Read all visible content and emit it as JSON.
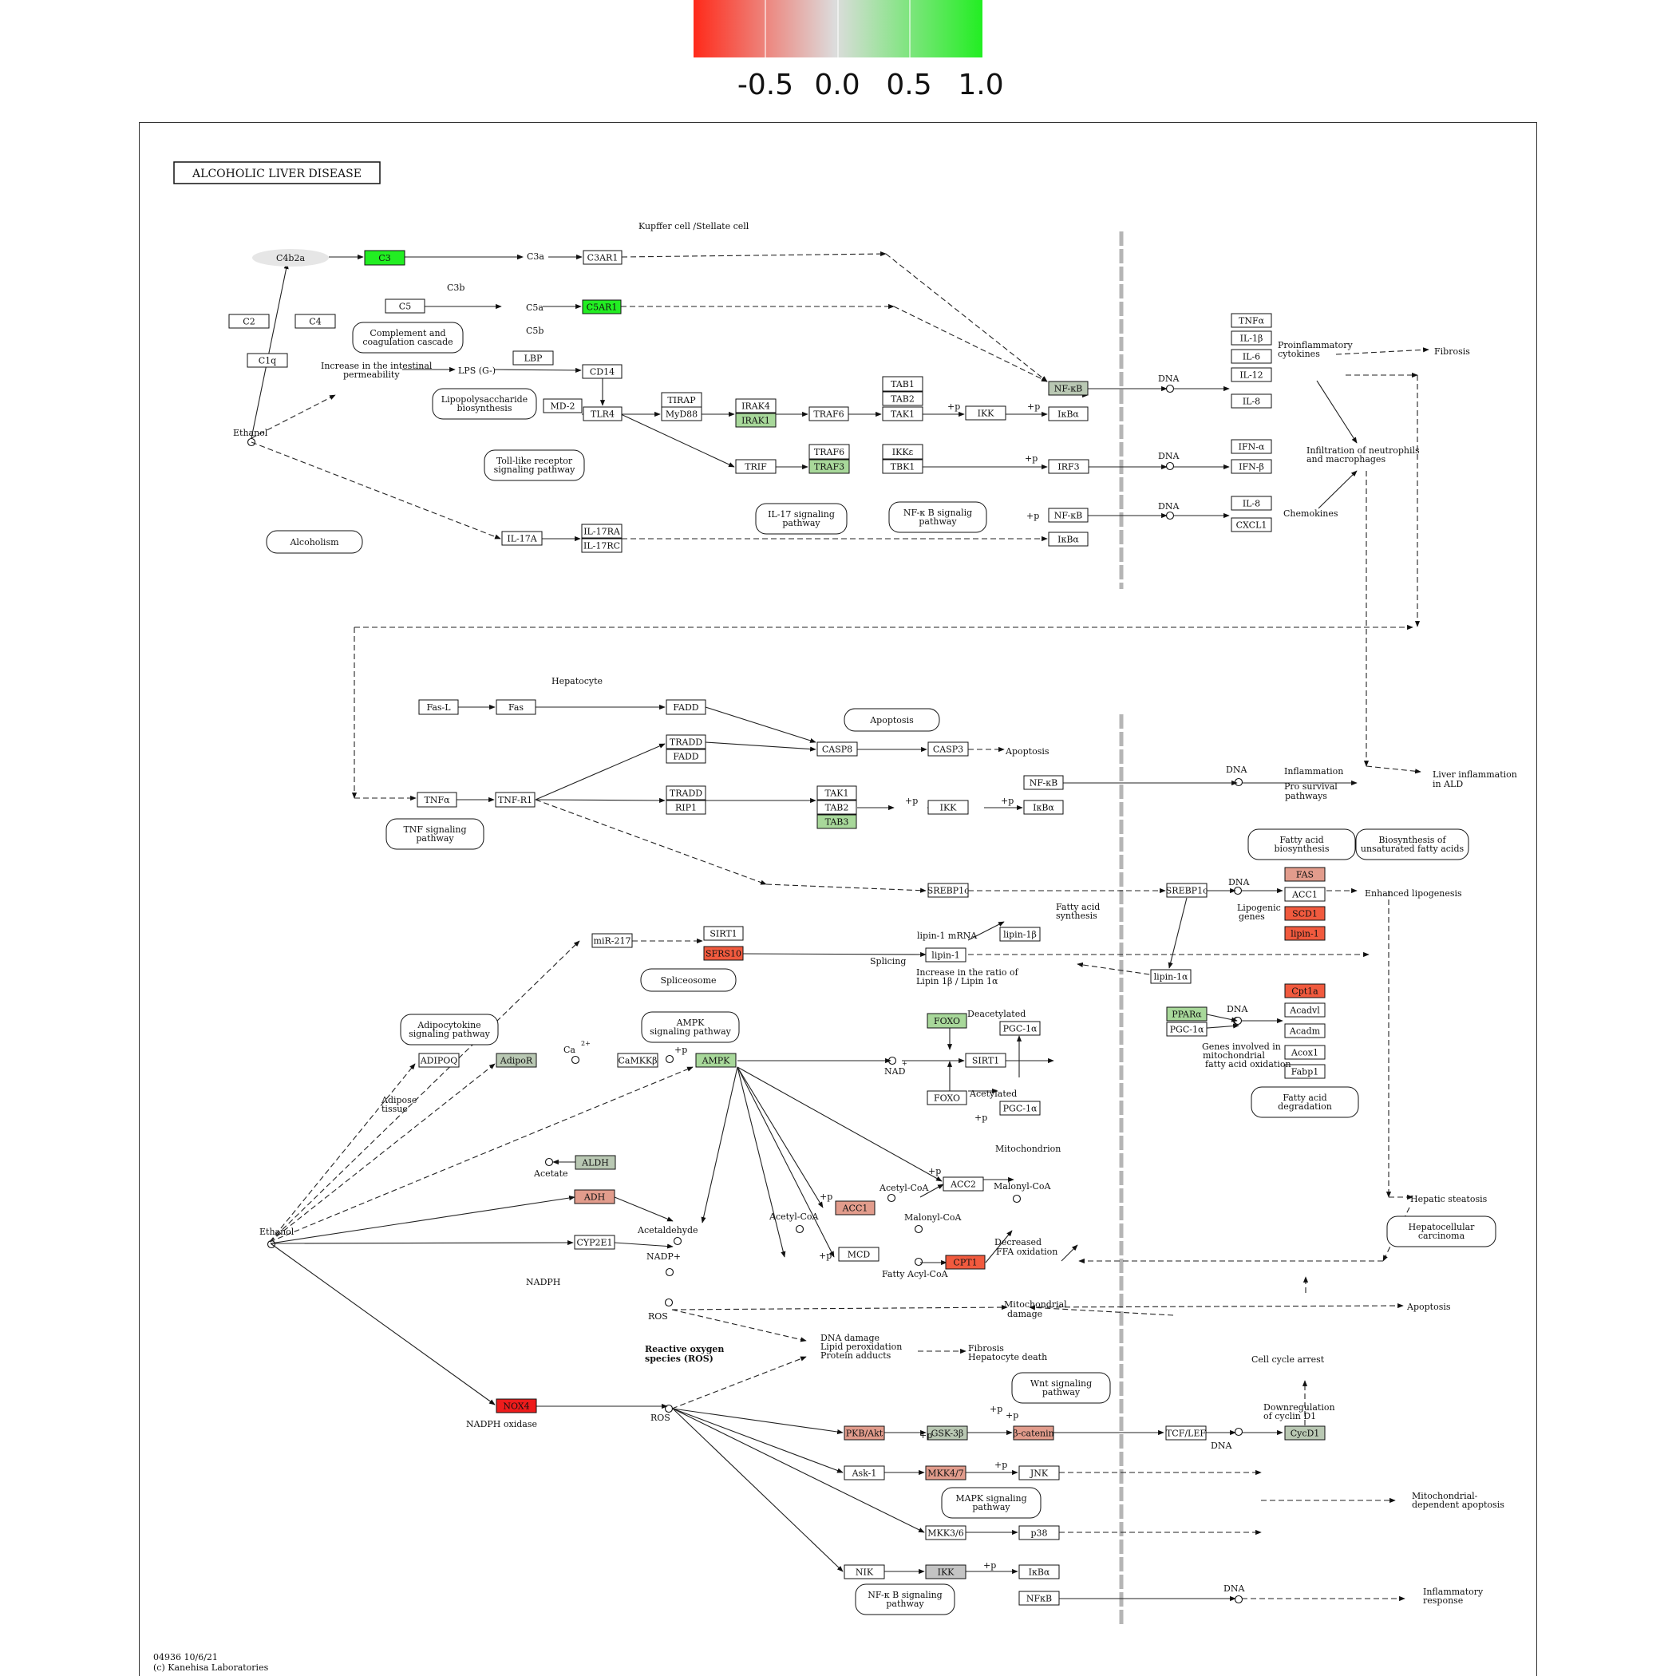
{
  "legend": {
    "ticks": [
      "-0.5",
      "0.0",
      "0.5",
      "1.0"
    ],
    "gradient_colors": [
      "#ff2a1a",
      "#dcdcdc",
      "#22ee22"
    ]
  },
  "title": "ALCOHOLIC LIVER DISEASE",
  "colors": {
    "strong_green": "#22ee22",
    "light_green": "#a8d89a",
    "grey_green": "#b9c8b3",
    "salmon": "#e29c8c",
    "red_orange": "#f15a3e",
    "red": "#ee1c1c",
    "grey": "#c4c4c4"
  },
  "footer": {
    "line1": "04936 10/6/21",
    "line2": "(c) Kanehisa Laboratories"
  },
  "diagram": {
    "labels": [
      "Kupffer cell /Stellate cell",
      "C3a",
      "C3b",
      "C5a",
      "C5b",
      "Ethanol",
      "Increase in the intestinal",
      "permeability",
      "LPS (G-)",
      "+p",
      "+p",
      "DNA",
      "DNA",
      "DNA",
      "Proinflammatory",
      "cytokines",
      "Fibrosis",
      "Infiltration of neutrophils",
      "and macrophages",
      "Chemokines",
      "+p",
      "+p",
      "Hepatocyte",
      "Apoptosis",
      "+p",
      "+p",
      "DNA",
      "Inflammation",
      "Pro survival",
      "pathways",
      "Liver inflammation",
      "in ALD",
      "DNA",
      "Lipogenic",
      "genes",
      "Enhanced lipogenesis",
      "Fatty acid",
      "synthesis",
      "lipin-1 mRNA",
      "Splicing",
      "Increase in the ratio of",
      "Lipin 1β / Lipin 1α",
      "Deacetylated",
      "Acetylated",
      "+p",
      "Ca",
      "2+",
      "+p",
      "NAD",
      "+",
      "DNA",
      "Genes involved in",
      "mitochondrial",
      "fatty acid oxidation",
      "Adipose",
      "tissue",
      "Mitochondrion",
      "Acetate",
      "Acetaldehyde",
      "NADP+",
      "NADPH",
      "+p",
      "Acetyl-CoA",
      "Malonyl-CoA",
      "+p",
      "Acetyl-CoA",
      "Malonyl-CoA",
      "+p",
      "Fatty Acyl-CoA",
      "Decreased",
      "FFA oxidation",
      "Hepatic steatosis",
      "Ethanol",
      "ROS",
      "Mitochondrial",
      "damage",
      "Apoptosis",
      "Reactive oxygen",
      "species (ROS)",
      "DNA damage",
      "Lipid peroxidation",
      "Protein adducts",
      "Fibrosis",
      "Hepatocyte death",
      "Cell cycle arrest",
      "Downregulation",
      "of cyclin D1",
      "NADPH oxidase",
      "ROS",
      "+p",
      "+p",
      "+p",
      "DNA",
      "+p",
      "Mitochondrial-",
      "dependent apoptosis",
      "+p",
      "DNA",
      "Inflammatory",
      "response"
    ],
    "nodes": [
      "C4b2a",
      "C3",
      "C3AR1",
      "C5",
      "C5AR1",
      "C2",
      "C4",
      "C1q",
      "LBP",
      "CD14",
      "MD-2",
      "TLR4",
      "TIRAP",
      "MyD88",
      "IRAK4",
      "IRAK1",
      "TRAF6",
      "TAB1",
      "TAB2",
      "TAK1",
      "IKK",
      "NF-κB",
      "IκBα",
      "TNFα",
      "IL-1β",
      "IL-6",
      "IL-12",
      "IL-8",
      "TRIF",
      "TRAF6",
      "TRAF3",
      "IKKε",
      "TBK1",
      "IRF3",
      "IFN-α",
      "IFN-β",
      "IL-17A",
      "IL-17RA",
      "IL-17RC",
      "NF-κB",
      "IκBα",
      "IL-8",
      "CXCL1",
      "Fas-L",
      "Fas",
      "FADD",
      "TRADD",
      "FADD",
      "CASP8",
      "CASP3",
      "TNFα",
      "TNF-R1",
      "TRADD",
      "RIP1",
      "TAK1",
      "TAB2",
      "TAB3",
      "IKK",
      "NF-κB",
      "IκBα",
      "FAS",
      "ACC1",
      "SCD1",
      "lipin-1",
      "SREBP1c",
      "SREBP1c",
      "miR-217",
      "SIRT1",
      "SFRS10",
      "lipin-1",
      "lipin-1β",
      "lipin-1α",
      "Cpt1a",
      "Acadvl",
      "Acadm",
      "Acox1",
      "Fabp1",
      "PPARα",
      "PGC-1α",
      "FOXO",
      "PGC-1α",
      "FOXO",
      "PGC-1α",
      "SIRT1",
      "ADIPOQ",
      "AdipoR",
      "CaMKKβ",
      "AMPK",
      "ALDH",
      "ADH",
      "CYP2E1",
      "ACC2",
      "ACC1",
      "MCD",
      "CPT1",
      "NOX4",
      "PKB/Akt",
      "GSK-3β",
      "β-catenin",
      "TCF/LEF",
      "CycD1",
      "Ask-1",
      "MKK4/7",
      "JNK",
      "MKK3/6",
      "p38",
      "NIK",
      "IKK",
      "IκBα",
      "NFκB"
    ],
    "pathway_refs": [
      "Complement and",
      "coagulation cascade",
      "Lipopolysaccharide",
      "biosynthesis",
      "Toll-like receptor",
      "signaling pathway",
      "IL-17 signaling",
      "pathway",
      "NF-κ B signalig",
      "pathway",
      "Alcoholism",
      "Apoptosis",
      "TNF signaling",
      "pathway",
      "Fatty acid",
      "biosynthesis",
      "Biosynthesis of",
      "unsaturated fatty acids",
      "Spliceosome",
      "Adipocytokine",
      "signaling pathway",
      "AMPK",
      "signaling pathway",
      "Fatty acid",
      "degradation",
      "Hepatocellular",
      "carcinoma",
      "Wnt signaling",
      "pathway",
      "MAPK signaling",
      "pathway",
      "NF-κ B signaling",
      "pathway"
    ]
  }
}
